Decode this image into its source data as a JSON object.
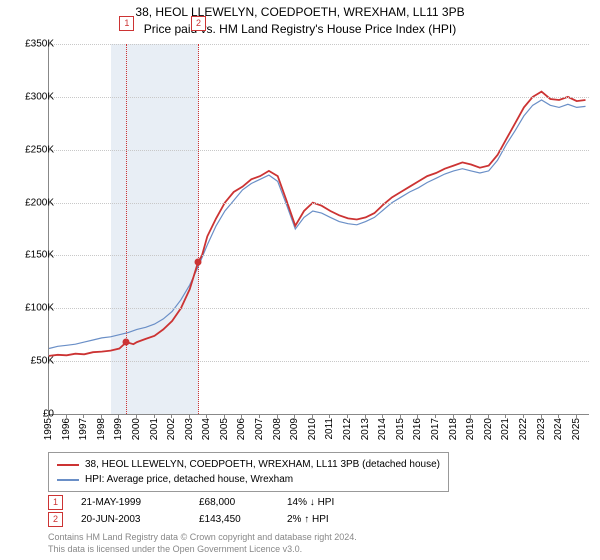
{
  "title_line1": "38, HEOL LLEWELYN, COEDPOETH, WREXHAM, LL11 3PB",
  "title_line2": "Price paid vs. HM Land Registry's House Price Index (HPI)",
  "chart": {
    "type": "line",
    "background_color": "#ffffff",
    "grid_color": "#c8c8c8",
    "axis_color": "#888888",
    "x_min": 1995,
    "x_max": 2025.7,
    "x_step": 1,
    "y_min": 0,
    "y_max": 350000,
    "y_step": 50000,
    "y_prefix": "£",
    "y_suffix": "K",
    "y_divisor": 1000,
    "shaded_x_from": 1998.5,
    "shaded_x_to": 2003.5,
    "marker_line_color": "#cc3333",
    "series": [
      {
        "name": "property",
        "label": "38, HEOL LLEWELYN, COEDPOETH, WREXHAM, LL11 3PB (detached house)",
        "color": "#cc3333",
        "width": 1.8,
        "points": [
          [
            1995,
            55000
          ],
          [
            1995.5,
            56000
          ],
          [
            1996,
            55500
          ],
          [
            1996.5,
            57000
          ],
          [
            1997,
            56500
          ],
          [
            1997.5,
            58500
          ],
          [
            1998,
            59000
          ],
          [
            1998.5,
            60000
          ],
          [
            1999,
            62000
          ],
          [
            1999.4,
            68000
          ],
          [
            1999.8,
            66000
          ],
          [
            2000,
            68000
          ],
          [
            2000.5,
            71000
          ],
          [
            2001,
            74000
          ],
          [
            2001.5,
            80000
          ],
          [
            2002,
            88000
          ],
          [
            2002.5,
            100000
          ],
          [
            2003,
            118000
          ],
          [
            2003.47,
            143450
          ],
          [
            2003.7,
            150000
          ],
          [
            2004,
            168000
          ],
          [
            2004.5,
            185000
          ],
          [
            2005,
            200000
          ],
          [
            2005.5,
            210000
          ],
          [
            2006,
            215000
          ],
          [
            2006.5,
            222000
          ],
          [
            2007,
            225000
          ],
          [
            2007.5,
            230000
          ],
          [
            2008,
            225000
          ],
          [
            2008.5,
            202000
          ],
          [
            2009,
            178000
          ],
          [
            2009.5,
            192000
          ],
          [
            2010,
            200000
          ],
          [
            2010.5,
            197000
          ],
          [
            2011,
            192000
          ],
          [
            2011.5,
            188000
          ],
          [
            2012,
            185000
          ],
          [
            2012.5,
            184000
          ],
          [
            2013,
            186000
          ],
          [
            2013.5,
            190000
          ],
          [
            2014,
            198000
          ],
          [
            2014.5,
            205000
          ],
          [
            2015,
            210000
          ],
          [
            2015.5,
            215000
          ],
          [
            2016,
            220000
          ],
          [
            2016.5,
            225000
          ],
          [
            2017,
            228000
          ],
          [
            2017.5,
            232000
          ],
          [
            2018,
            235000
          ],
          [
            2018.5,
            238000
          ],
          [
            2019,
            236000
          ],
          [
            2019.5,
            233000
          ],
          [
            2020,
            235000
          ],
          [
            2020.5,
            245000
          ],
          [
            2021,
            260000
          ],
          [
            2021.5,
            275000
          ],
          [
            2022,
            290000
          ],
          [
            2022.5,
            300000
          ],
          [
            2023,
            305000
          ],
          [
            2023.5,
            298000
          ],
          [
            2024,
            297000
          ],
          [
            2024.5,
            300000
          ],
          [
            2025,
            296000
          ],
          [
            2025.5,
            297000
          ]
        ]
      },
      {
        "name": "hpi",
        "label": "HPI: Average price, detached house, Wrexham",
        "color": "#6a8fc7",
        "width": 1.2,
        "points": [
          [
            1995,
            62000
          ],
          [
            1995.5,
            64000
          ],
          [
            1996,
            65000
          ],
          [
            1996.5,
            66000
          ],
          [
            1997,
            68000
          ],
          [
            1997.5,
            70000
          ],
          [
            1998,
            72000
          ],
          [
            1998.5,
            73000
          ],
          [
            1999,
            75000
          ],
          [
            1999.5,
            77000
          ],
          [
            2000,
            80000
          ],
          [
            2000.5,
            82000
          ],
          [
            2001,
            85000
          ],
          [
            2001.5,
            90000
          ],
          [
            2002,
            97000
          ],
          [
            2002.5,
            108000
          ],
          [
            2003,
            122000
          ],
          [
            2003.5,
            140000
          ],
          [
            2004,
            160000
          ],
          [
            2004.5,
            178000
          ],
          [
            2005,
            192000
          ],
          [
            2005.5,
            202000
          ],
          [
            2006,
            212000
          ],
          [
            2006.5,
            218000
          ],
          [
            2007,
            222000
          ],
          [
            2007.5,
            226000
          ],
          [
            2008,
            220000
          ],
          [
            2008.5,
            198000
          ],
          [
            2009,
            175000
          ],
          [
            2009.5,
            186000
          ],
          [
            2010,
            192000
          ],
          [
            2010.5,
            190000
          ],
          [
            2011,
            186000
          ],
          [
            2011.5,
            182000
          ],
          [
            2012,
            180000
          ],
          [
            2012.5,
            179000
          ],
          [
            2013,
            182000
          ],
          [
            2013.5,
            186000
          ],
          [
            2014,
            193000
          ],
          [
            2014.5,
            200000
          ],
          [
            2015,
            205000
          ],
          [
            2015.5,
            210000
          ],
          [
            2016,
            214000
          ],
          [
            2016.5,
            219000
          ],
          [
            2017,
            223000
          ],
          [
            2017.5,
            227000
          ],
          [
            2018,
            230000
          ],
          [
            2018.5,
            232000
          ],
          [
            2019,
            230000
          ],
          [
            2019.5,
            228000
          ],
          [
            2020,
            230000
          ],
          [
            2020.5,
            240000
          ],
          [
            2021,
            255000
          ],
          [
            2021.5,
            268000
          ],
          [
            2022,
            282000
          ],
          [
            2022.5,
            292000
          ],
          [
            2023,
            297000
          ],
          [
            2023.5,
            292000
          ],
          [
            2024,
            290000
          ],
          [
            2024.5,
            293000
          ],
          [
            2025,
            290000
          ],
          [
            2025.5,
            291000
          ]
        ]
      }
    ],
    "sale_markers": [
      {
        "n": "1",
        "x": 1999.4,
        "y": 68000
      },
      {
        "n": "2",
        "x": 2003.47,
        "y": 143450
      }
    ]
  },
  "legend": {
    "rows": [
      {
        "color": "#cc3333",
        "text": "38, HEOL LLEWELYN, COEDPOETH, WREXHAM, LL11 3PB (detached house)"
      },
      {
        "color": "#6a8fc7",
        "text": "HPI: Average price, detached house, Wrexham"
      }
    ]
  },
  "sales": [
    {
      "n": "1",
      "date": "21-MAY-1999",
      "price": "£68,000",
      "delta": "14% ↓ HPI"
    },
    {
      "n": "2",
      "date": "20-JUN-2003",
      "price": "£143,450",
      "delta": "2% ↑ HPI"
    }
  ],
  "footnote_line1": "Contains HM Land Registry data © Crown copyright and database right 2024.",
  "footnote_line2": "This data is licensed under the Open Government Licence v3.0."
}
